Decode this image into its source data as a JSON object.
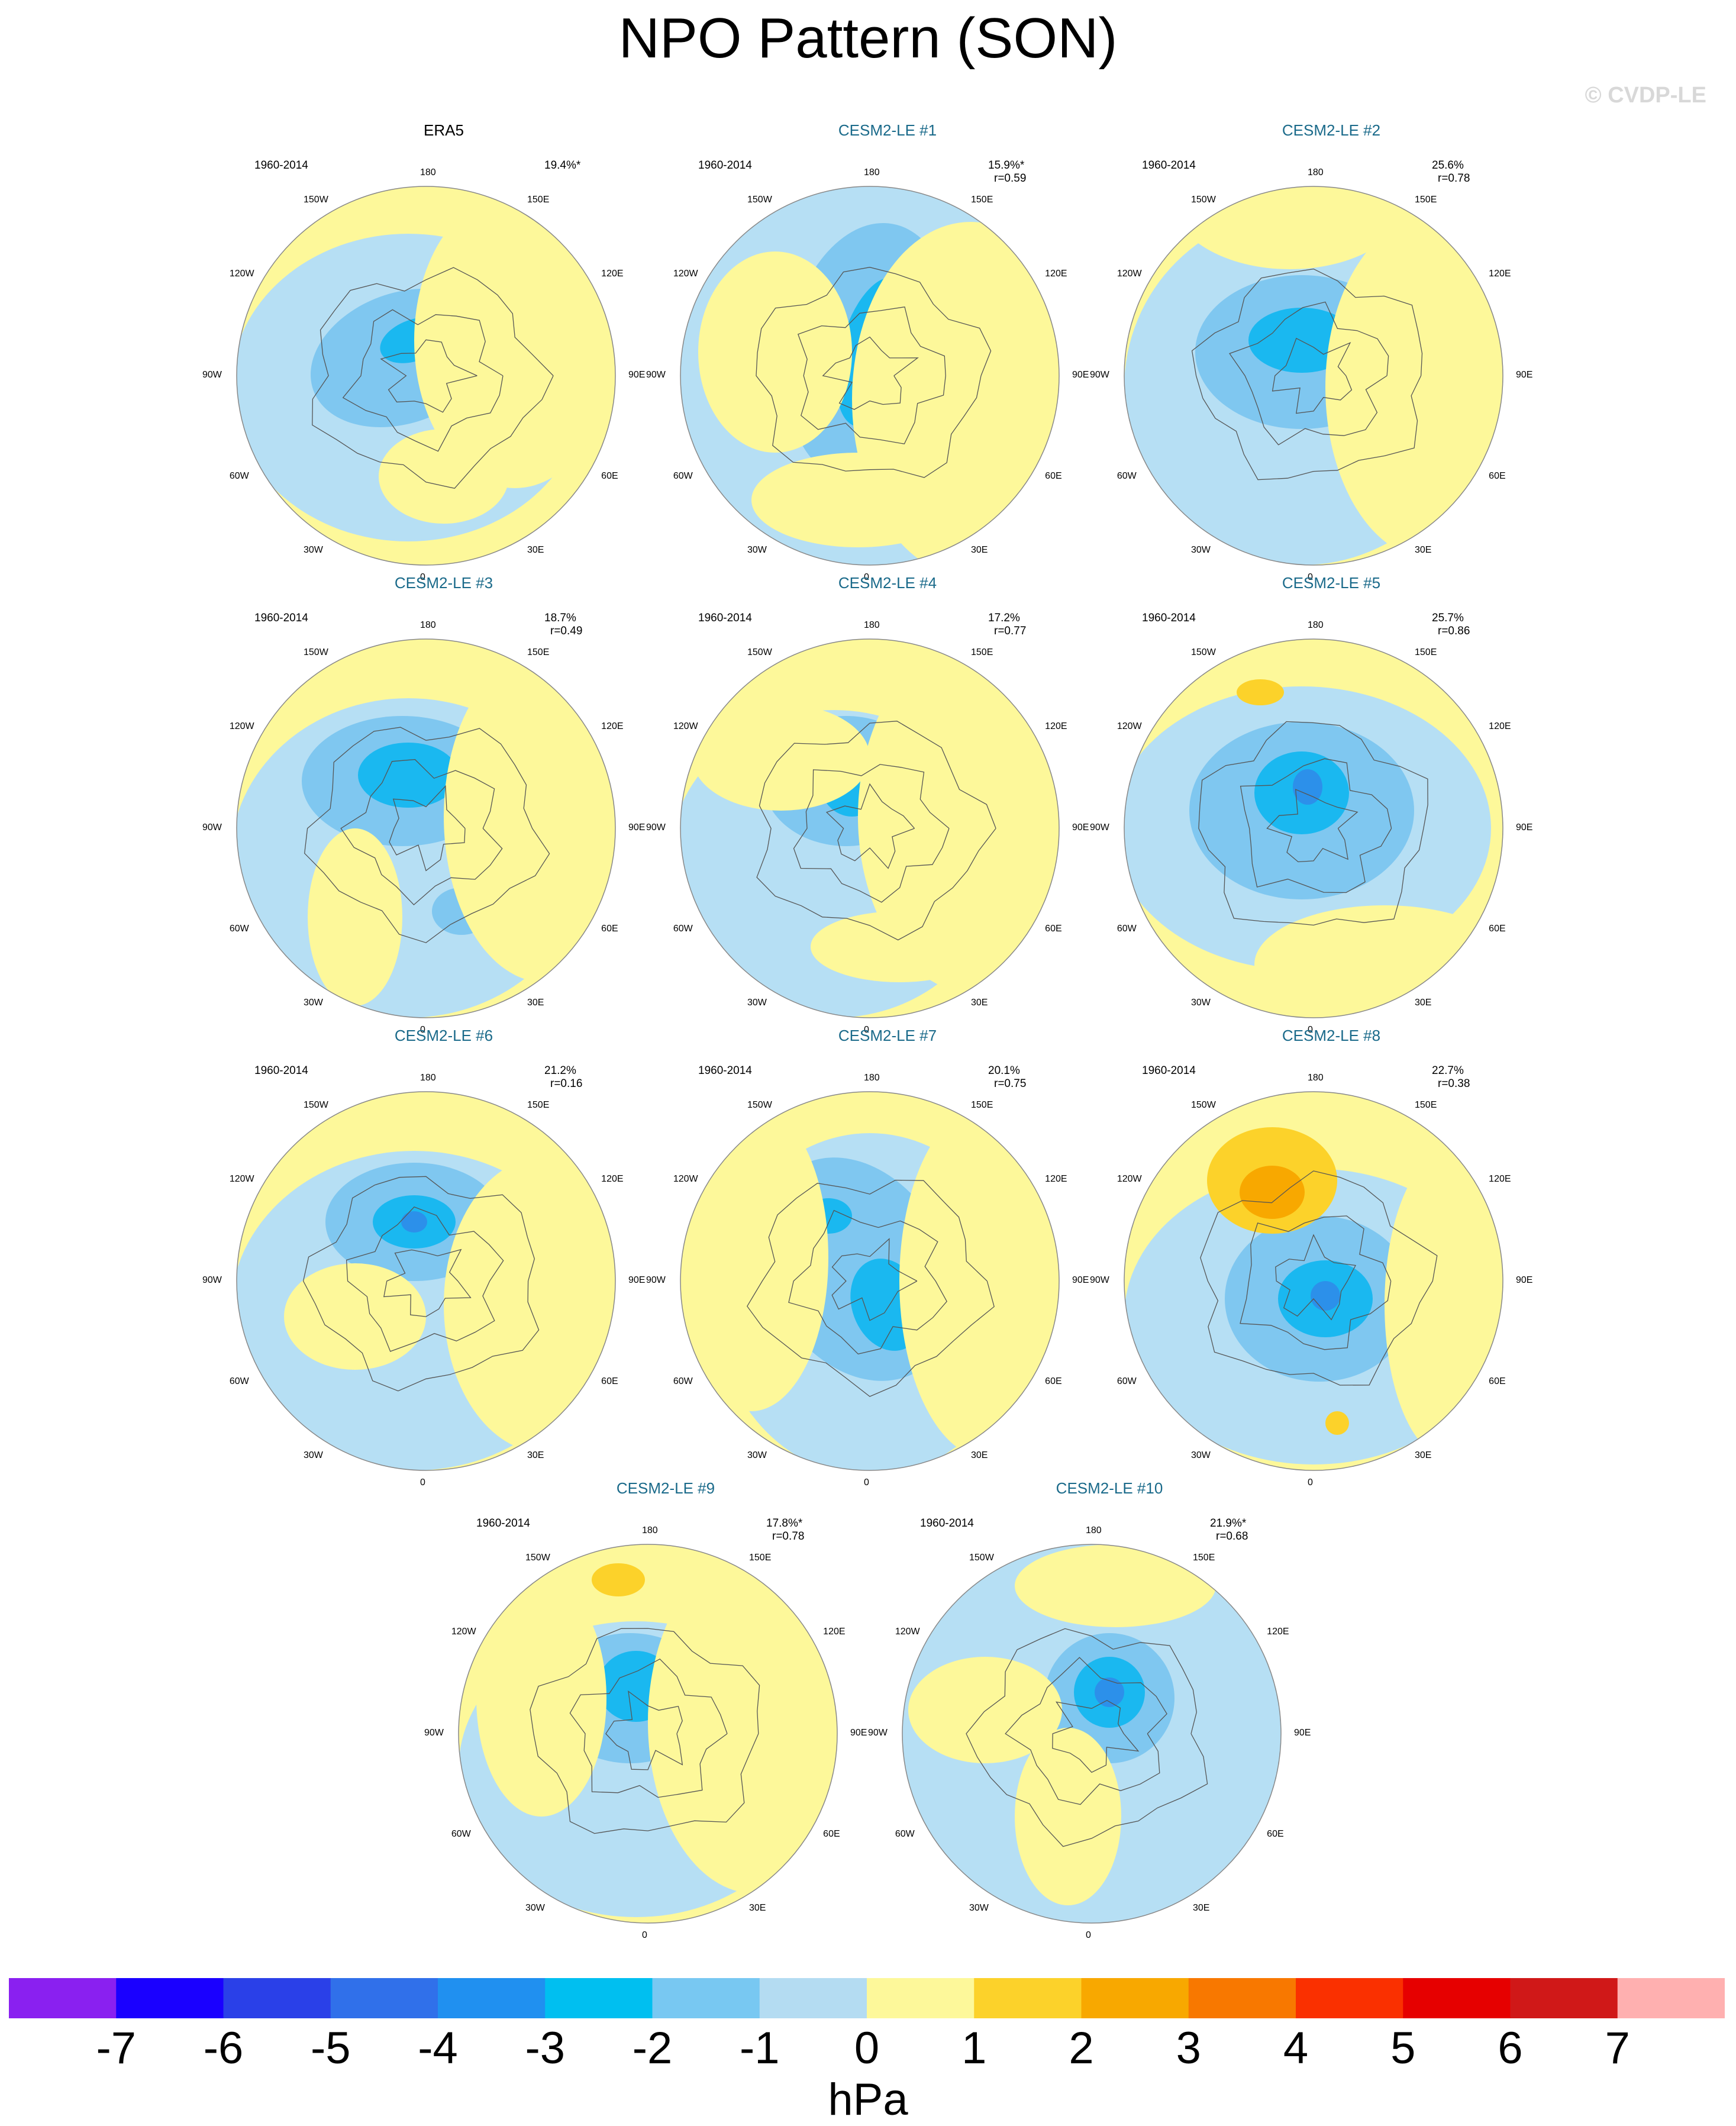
{
  "title": "NPO Pattern (SON)",
  "watermark": "© CVDP-LE",
  "colors": {
    "ocean_land_pos1": "#fdf89a",
    "neg1": "#b6dff4",
    "neg2": "#7fc7f0",
    "neg3": "#1ab8f0",
    "neg4": "#2c90ea",
    "pos2": "#fcd22a",
    "pos3": "#f8a800",
    "coast": "#555555"
  },
  "lon_labels": [
    "180",
    "150E",
    "120E",
    "90E",
    "60E",
    "30E",
    "0",
    "30W",
    "60W",
    "90W",
    "120W",
    "150W"
  ],
  "panels": [
    {
      "title": "ERA5",
      "obs": true,
      "period": "1960-2014",
      "stat1": "19.4%*",
      "stat2": "",
      "variant": 0
    },
    {
      "title": "CESM2-LE #1",
      "obs": false,
      "period": "1960-2014",
      "stat1": "15.9%*",
      "stat2": "r=0.59",
      "variant": 1
    },
    {
      "title": "CESM2-LE #2",
      "obs": false,
      "period": "1960-2014",
      "stat1": "25.6%",
      "stat2": "r=0.78",
      "variant": 2
    },
    {
      "title": "CESM2-LE #3",
      "obs": false,
      "period": "1960-2014",
      "stat1": "18.7%",
      "stat2": "r=0.49",
      "variant": 3
    },
    {
      "title": "CESM2-LE #4",
      "obs": false,
      "period": "1960-2014",
      "stat1": "17.2%",
      "stat2": "r=0.77",
      "variant": 4
    },
    {
      "title": "CESM2-LE #5",
      "obs": false,
      "period": "1960-2014",
      "stat1": "25.7%",
      "stat2": "r=0.86",
      "variant": 5
    },
    {
      "title": "CESM2-LE #6",
      "obs": false,
      "period": "1960-2014",
      "stat1": "21.2%",
      "stat2": "r=0.16",
      "variant": 6
    },
    {
      "title": "CESM2-LE #7",
      "obs": false,
      "period": "1960-2014",
      "stat1": "20.1%",
      "stat2": "r=0.75",
      "variant": 7
    },
    {
      "title": "CESM2-LE #8",
      "obs": false,
      "period": "1960-2014",
      "stat1": "22.7%",
      "stat2": "r=0.38",
      "variant": 8
    },
    {
      "title": "CESM2-LE #9",
      "obs": false,
      "period": "1960-2014",
      "stat1": "17.8%*",
      "stat2": "r=0.78",
      "variant": 9
    },
    {
      "title": "CESM2-LE #10",
      "obs": false,
      "period": "1960-2014",
      "stat1": "21.9%*",
      "stat2": "r=0.68",
      "variant": 10
    }
  ],
  "colorbar": {
    "unit": "hPa",
    "ticks": [
      "-7",
      "-6",
      "-5",
      "-4",
      "-3",
      "-2",
      "-1",
      "0",
      "1",
      "2",
      "3",
      "4",
      "5",
      "6",
      "7"
    ],
    "colors": [
      "#8a20f0",
      "#1a00ff",
      "#2a40e8",
      "#3070ea",
      "#2090f0",
      "#00bff0",
      "#78c8f2",
      "#b4dcf2",
      "#fdf89a",
      "#fcd22a",
      "#f8a800",
      "#f87800",
      "#fa3000",
      "#e60000",
      "#d01818",
      "#ffb0b0"
    ]
  }
}
